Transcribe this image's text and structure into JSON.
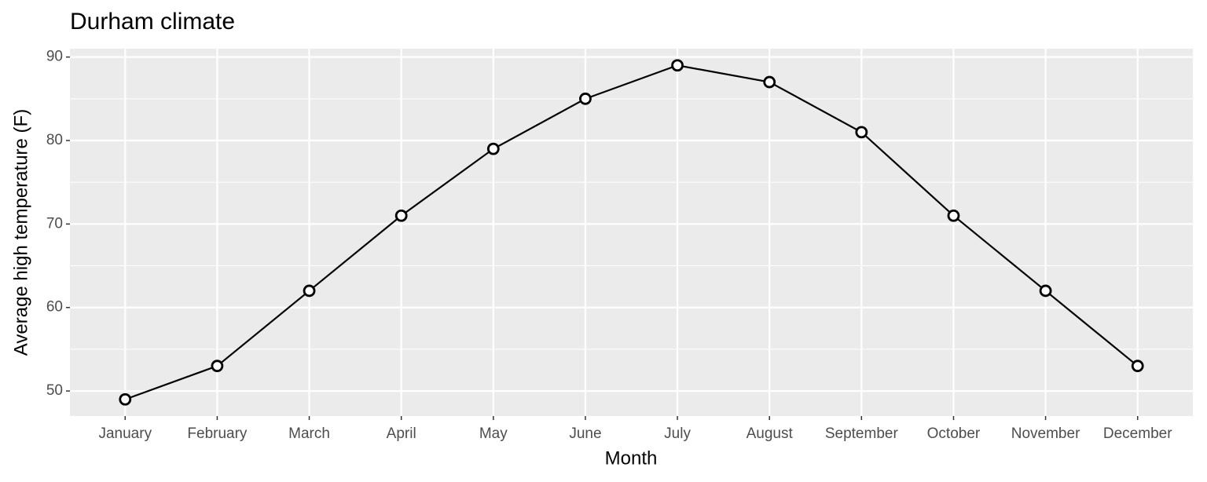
{
  "chart_data": {
    "type": "line",
    "title": "Durham climate",
    "x_label": "Month",
    "y_label": "Average high temperature (F)",
    "categories": [
      "January",
      "February",
      "March",
      "April",
      "May",
      "June",
      "July",
      "August",
      "September",
      "October",
      "November",
      "December"
    ],
    "values": [
      49,
      53,
      62,
      71,
      79,
      85,
      89,
      87,
      81,
      71,
      62,
      53
    ],
    "color": "#000000",
    "ylim": [
      47,
      91
    ],
    "yticks": [
      50,
      60,
      70,
      80,
      90
    ],
    "grid": true
  }
}
